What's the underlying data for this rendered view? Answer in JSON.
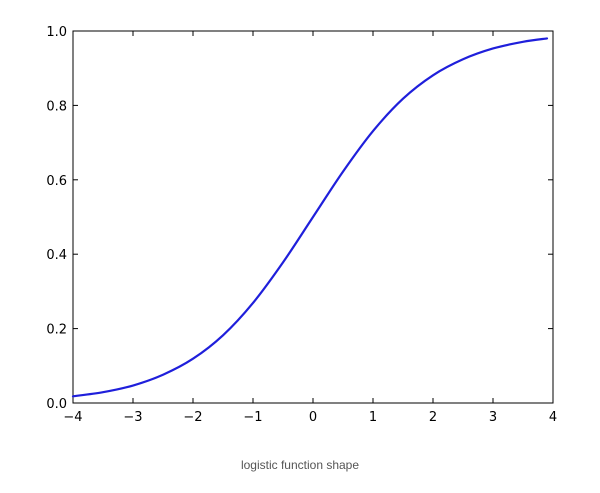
{
  "caption": "logistic function shape",
  "chart_data": {
    "type": "line",
    "title": "",
    "xlabel": "",
    "ylabel": "",
    "xlim": [
      -4,
      4
    ],
    "ylim": [
      0,
      1
    ],
    "x_ticks": [
      -4,
      -3,
      -2,
      -1,
      0,
      1,
      2,
      3,
      4
    ],
    "x_tick_labels": [
      "−4",
      "−3",
      "−2",
      "−1",
      "0",
      "1",
      "2",
      "3",
      "4"
    ],
    "y_ticks": [
      0,
      0.2,
      0.4,
      0.6,
      0.8,
      1.0
    ],
    "y_tick_labels": [
      "0.0",
      "0.2",
      "0.4",
      "0.6",
      "0.8",
      "1.0"
    ],
    "grid": false,
    "series": [
      {
        "color": "#1f1fdb",
        "x": [
          -4,
          -3.5,
          -3,
          -2.5,
          -2,
          -1.5,
          -1,
          -0.5,
          0,
          0.5,
          1,
          1.5,
          2,
          2.5,
          3,
          3.5,
          3.9
        ],
        "y": [
          0.018,
          0.029,
          0.047,
          0.076,
          0.119,
          0.182,
          0.269,
          0.378,
          0.5,
          0.622,
          0.731,
          0.818,
          0.881,
          0.924,
          0.953,
          0.971,
          0.98
        ]
      }
    ]
  }
}
